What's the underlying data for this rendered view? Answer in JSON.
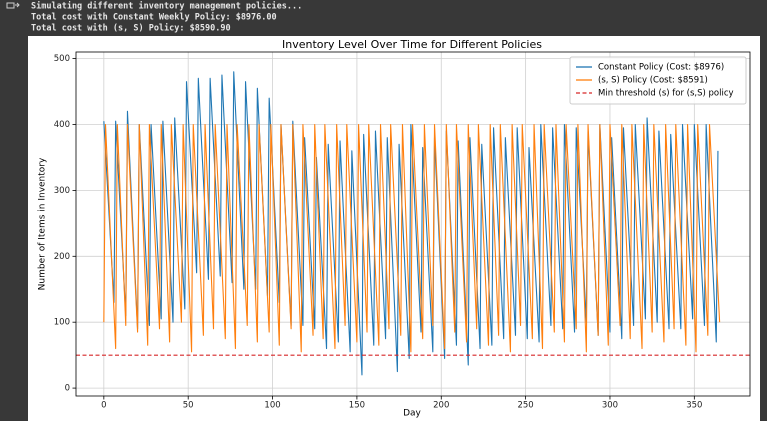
{
  "console": {
    "lines": [
      "Simulating different inventory management policies...",
      "Total cost with Constant Weekly Policy: $8976.00",
      "Total cost with (s, S) Policy: $8590.90"
    ]
  },
  "chart_data": {
    "type": "line",
    "title": "Inventory Level Over Time for Different Policies",
    "xlabel": "Day",
    "ylabel": "Number of Items in Inventory",
    "xlim": [
      -16.5,
      383
    ],
    "ylim": [
      -12,
      510
    ],
    "xticks": [
      0,
      50,
      100,
      150,
      200,
      250,
      300,
      350
    ],
    "yticks": [
      0,
      100,
      200,
      300,
      400,
      500
    ],
    "grid": true,
    "legend": "upper right",
    "series": [
      {
        "name": "Constant Policy (Cost: $8976)",
        "color": "#1f77b4",
        "x": [
          0,
          6,
          7,
          13,
          14,
          20,
          21,
          27,
          28,
          34,
          35,
          41,
          42,
          48,
          49,
          55,
          56,
          62,
          63,
          69,
          70,
          76,
          77,
          83,
          84,
          90,
          91,
          97,
          98,
          104,
          105,
          111,
          112,
          118,
          119,
          125,
          126,
          132,
          133,
          139,
          140,
          146,
          147,
          153,
          154,
          160,
          161,
          167,
          168,
          174,
          175,
          181,
          182,
          188,
          189,
          195,
          196,
          202,
          203,
          209,
          210,
          216,
          217,
          223,
          224,
          230,
          231,
          237,
          238,
          244,
          245,
          251,
          252,
          258,
          259,
          265,
          266,
          272,
          273,
          279,
          280,
          286,
          287,
          293,
          294,
          300,
          301,
          307,
          308,
          314,
          315,
          321,
          322,
          328,
          329,
          335,
          336,
          342,
          343,
          349,
          350,
          356,
          357,
          363,
          364
        ],
        "values": [
          405,
          130,
          405,
          110,
          420,
          90,
          400,
          95,
          400,
          105,
          405,
          100,
          410,
          120,
          465,
          175,
          470,
          165,
          470,
          170,
          475,
          160,
          480,
          150,
          465,
          150,
          455,
          140,
          440,
          130,
          400,
          95,
          405,
          95,
          380,
          90,
          350,
          60,
          370,
          70,
          375,
          55,
          360,
          20,
          385,
          65,
          390,
          75,
          380,
          25,
          370,
          45,
          400,
          85,
          365,
          55,
          380,
          45,
          390,
          65,
          375,
          35,
          380,
          60,
          370,
          65,
          395,
          75,
          380,
          80,
          395,
          75,
          365,
          70,
          400,
          95,
          395,
          90,
          400,
          85,
          395,
          100,
          390,
          80,
          400,
          85,
          380,
          75,
          395,
          95,
          400,
          105,
          410,
          100,
          390,
          90,
          385,
          90,
          400,
          105,
          400,
          95,
          400,
          70,
          360
        ]
      },
      {
        "name": "(s, S) Policy (Cost: $8591)",
        "color": "#ff7f0e",
        "x": [
          0,
          1,
          7,
          8,
          13,
          14,
          20,
          21,
          26,
          27,
          33,
          34,
          39,
          40,
          46,
          47,
          52,
          53,
          59,
          60,
          65,
          66,
          72,
          73,
          78,
          79,
          85,
          86,
          91,
          92,
          98,
          99,
          104,
          105,
          111,
          112,
          117,
          118,
          124,
          125,
          130,
          131,
          137,
          138,
          143,
          144,
          150,
          151,
          156,
          157,
          163,
          164,
          169,
          170,
          176,
          177,
          182,
          183,
          189,
          190,
          195,
          196,
          202,
          203,
          208,
          209,
          215,
          216,
          221,
          222,
          228,
          229,
          234,
          235,
          241,
          242,
          247,
          248,
          254,
          255,
          260,
          261,
          267,
          268,
          273,
          274,
          280,
          281,
          286,
          287,
          293,
          294,
          299,
          300,
          306,
          307,
          312,
          313,
          319,
          320,
          325,
          326,
          332,
          333,
          338,
          339,
          345,
          346,
          351,
          352,
          358,
          359,
          365
        ],
        "values": [
          100,
          400,
          60,
          400,
          95,
          400,
          85,
          400,
          65,
          400,
          90,
          400,
          70,
          400,
          100,
          400,
          55,
          400,
          80,
          400,
          90,
          400,
          75,
          400,
          60,
          400,
          95,
          400,
          70,
          400,
          85,
          400,
          65,
          400,
          90,
          400,
          55,
          400,
          80,
          400,
          75,
          400,
          60,
          400,
          95,
          400,
          70,
          400,
          85,
          400,
          65,
          400,
          90,
          400,
          80,
          400,
          55,
          400,
          75,
          400,
          95,
          400,
          60,
          400,
          85,
          400,
          70,
          400,
          90,
          400,
          65,
          400,
          80,
          400,
          55,
          400,
          95,
          400,
          75,
          400,
          60,
          400,
          85,
          400,
          70,
          400,
          90,
          400,
          55,
          400,
          80,
          400,
          65,
          400,
          95,
          400,
          75,
          400,
          60,
          400,
          85,
          400,
          70,
          400,
          90,
          400,
          65,
          400,
          55,
          400,
          80,
          400,
          100
        ]
      }
    ],
    "threshold": {
      "name": "Min threshold (s) for (s,S) policy",
      "value": 50,
      "color": "#d62728",
      "style": "dashed"
    }
  }
}
